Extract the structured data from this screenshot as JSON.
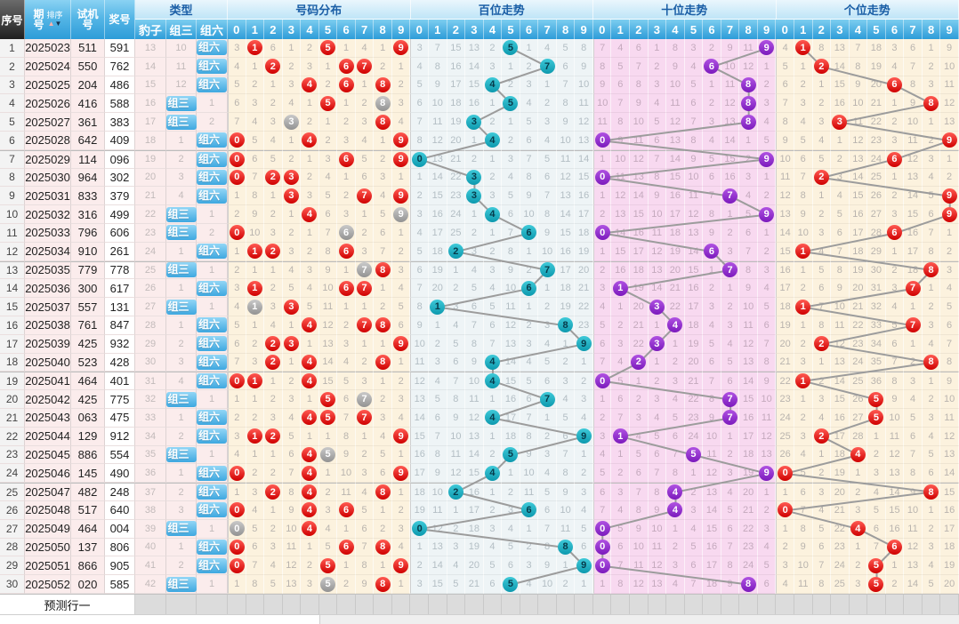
{
  "header": {
    "xuhao": "序号",
    "qihao": "期号",
    "paixu": "排序",
    "sort_up": "▲",
    "sort_down": "▼",
    "shijihao": "试机号",
    "jianghao": "奖号",
    "leixing": "类型",
    "baozi": "豹子",
    "zusan": "组三",
    "zuliu": "组六",
    "haoma_fenbu": "号码分布",
    "baiwei": "百位走势",
    "shiwei": "十位走势",
    "gewei": "个位走势",
    "digits": [
      "0",
      "1",
      "2",
      "3",
      "4",
      "5",
      "6",
      "7",
      "8",
      "9"
    ]
  },
  "footer": {
    "yuce": "预测行一"
  },
  "colors": {
    "ball_red": "#cf0000",
    "ball_gray": "#929292",
    "ball_teal": "#0d99ae",
    "ball_purple": "#7b1abc",
    "trend_line": "#9c9c9c",
    "header_blue": "#2d9cd8",
    "section_title_text": "#1a5ea6",
    "bg_dist": "#fcf2de",
    "bg_bai": "#eef4f6",
    "bg_shi": "#f8d9f0",
    "bg_pink_col": "#fbecec"
  },
  "chart_data": {
    "type": "table",
    "row_group_size": 6,
    "rows": [
      {
        "seq": 1,
        "period": "2025023",
        "test": "511",
        "prize": "591"
      },
      {
        "seq": 2,
        "period": "2025024",
        "test": "550",
        "prize": "762"
      },
      {
        "seq": 3,
        "period": "2025025",
        "test": "204",
        "prize": "486"
      },
      {
        "seq": 4,
        "period": "2025026",
        "test": "416",
        "prize": "588"
      },
      {
        "seq": 5,
        "period": "2025027",
        "test": "361",
        "prize": "383"
      },
      {
        "seq": 6,
        "period": "2025028",
        "test": "642",
        "prize": "409"
      },
      {
        "seq": 7,
        "period": "2025029",
        "test": "114",
        "prize": "096"
      },
      {
        "seq": 8,
        "period": "2025030",
        "test": "964",
        "prize": "302"
      },
      {
        "seq": 9,
        "period": "2025031",
        "test": "833",
        "prize": "379"
      },
      {
        "seq": 10,
        "period": "2025032",
        "test": "316",
        "prize": "499"
      },
      {
        "seq": 11,
        "period": "2025033",
        "test": "796",
        "prize": "606"
      },
      {
        "seq": 12,
        "period": "2025034",
        "test": "910",
        "prize": "261"
      },
      {
        "seq": 13,
        "period": "2025035",
        "test": "779",
        "prize": "778"
      },
      {
        "seq": 14,
        "period": "2025036",
        "test": "300",
        "prize": "617"
      },
      {
        "seq": 15,
        "period": "2025037",
        "test": "557",
        "prize": "131"
      },
      {
        "seq": 16,
        "period": "2025038",
        "test": "761",
        "prize": "847"
      },
      {
        "seq": 17,
        "period": "2025039",
        "test": "425",
        "prize": "932"
      },
      {
        "seq": 18,
        "period": "2025040",
        "test": "523",
        "prize": "428"
      },
      {
        "seq": 19,
        "period": "2025041",
        "test": "464",
        "prize": "401"
      },
      {
        "seq": 20,
        "period": "2025042",
        "test": "425",
        "prize": "775"
      },
      {
        "seq": 21,
        "period": "2025043",
        "test": "063",
        "prize": "475"
      },
      {
        "seq": 22,
        "period": "2025044",
        "test": "129",
        "prize": "912"
      },
      {
        "seq": 23,
        "period": "2025045",
        "test": "886",
        "prize": "554"
      },
      {
        "seq": 24,
        "period": "2025046",
        "test": "145",
        "prize": "490"
      },
      {
        "seq": 25,
        "period": "2025047",
        "test": "482",
        "prize": "248"
      },
      {
        "seq": 26,
        "period": "2025048",
        "test": "517",
        "prize": "640"
      },
      {
        "seq": 27,
        "period": "2025049",
        "test": "464",
        "prize": "004"
      },
      {
        "seq": 28,
        "period": "2025050",
        "test": "137",
        "prize": "806"
      },
      {
        "seq": 29,
        "period": "2025051",
        "test": "866",
        "prize": "905"
      },
      {
        "seq": 30,
        "period": "2025052",
        "test": "020",
        "prize": "585"
      }
    ],
    "miss_before_first_row": {
      "baozi": 12,
      "zusan": 9,
      "zuliu": 0,
      "dist": [
        2,
        0,
        5,
        0,
        1,
        0,
        0,
        3,
        0,
        0
      ],
      "bai": [
        2,
        6,
        14,
        12,
        1,
        0,
        0,
        3,
        4,
        7
      ],
      "shi": [
        6,
        3,
        5,
        0,
        7,
        2,
        1,
        8,
        10,
        0
      ],
      "ge": [
        3,
        0,
        7,
        12,
        6,
        17,
        2,
        5,
        0,
        8
      ]
    }
  }
}
